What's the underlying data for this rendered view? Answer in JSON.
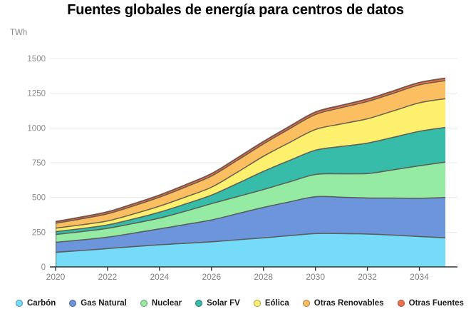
{
  "title": "Fuentes globales de energía para centros de datos",
  "y_axis_unit": "TWh",
  "colors": {
    "axis": "#333333",
    "grid": "#e8e8e8",
    "tick_label": "#808080",
    "y_tick_label": "#8c8c8c",
    "boundary_stroke": "#55504a",
    "top_boundary_stroke": "#6e5244",
    "title_text": "#000000",
    "legend_text": "#1c1c1c",
    "background": "#ffffff"
  },
  "chart_data": {
    "type": "area",
    "stacked": true,
    "title": "Fuentes globales de energía para centros de datos",
    "ylabel": "TWh",
    "xlabel": "",
    "grid": "horizontal",
    "legend_position": "bottom",
    "xlim": [
      2020,
      2035
    ],
    "ylim": [
      0,
      1500
    ],
    "x": [
      2020,
      2021,
      2022,
      2023,
      2024,
      2025,
      2026,
      2027,
      2028,
      2029,
      2030,
      2031,
      2032,
      2033,
      2034,
      2035
    ],
    "x_ticks": [
      2020,
      2022,
      2024,
      2026,
      2028,
      2030,
      2032,
      2034
    ],
    "y_ticks": [
      0,
      250,
      500,
      750,
      1000,
      1250,
      1500
    ],
    "series": [
      {
        "name": "Carbón",
        "color": "#76dbf8",
        "values": [
          105,
          118,
          132,
          146,
          159,
          170,
          181,
          195,
          209,
          225,
          240,
          240,
          237,
          229,
          219,
          209
        ]
      },
      {
        "name": "Gas Natural",
        "color": "#6c95dc",
        "values": [
          72,
          76,
          82,
          97,
          115,
          135,
          157,
          188,
          219,
          243,
          265,
          262,
          259,
          266,
          275,
          291
        ]
      },
      {
        "name": "Nuclear",
        "color": "#95eba3",
        "values": [
          56,
          60,
          64,
          70,
          77,
          96,
          117,
          123,
          129,
          144,
          160,
          168,
          176,
          204,
          234,
          254
        ]
      },
      {
        "name": "Solar FV",
        "color": "#38bcaa",
        "values": [
          21,
          22,
          24,
          32,
          43,
          52,
          62,
          95,
          131,
          154,
          175,
          197,
          219,
          234,
          248,
          250
        ]
      },
      {
        "name": "Eólica",
        "color": "#fdf06f",
        "values": [
          25,
          27,
          29,
          36,
          43,
          50,
          57,
          81,
          108,
          129,
          149,
          162,
          175,
          190,
          205,
          207
        ]
      },
      {
        "name": "Otras Renovables",
        "color": "#fbbf62",
        "values": [
          35,
          43,
          51,
          58,
          65,
          72,
          80,
          86,
          89,
          99,
          108,
          117,
          125,
          127,
          129,
          130
        ]
      },
      {
        "name": "Otras Fuentes",
        "color": "#f0714e",
        "values": [
          12,
          13,
          14,
          15,
          15,
          16,
          17,
          17,
          17,
          17,
          17,
          17,
          17,
          17,
          17,
          17
        ]
      }
    ]
  }
}
